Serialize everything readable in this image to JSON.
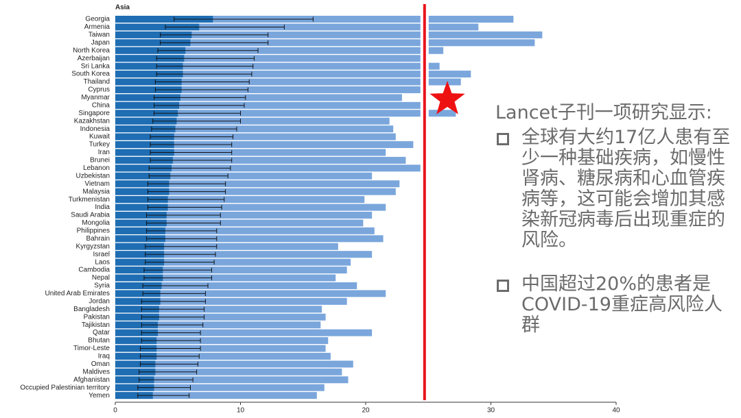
{
  "chart_data": {
    "type": "bar",
    "orientation": "horizontal",
    "title": "Asia",
    "categories": [
      "Georgia",
      "Armenia",
      "Taiwan",
      "Japan",
      "North Korea",
      "Azerbaijan",
      "Sri Lanka",
      "South Korea",
      "Thailand",
      "Cyprus",
      "Myanmar",
      "China",
      "Singapore",
      "Kazakhstan",
      "Indonesia",
      "Kuwait",
      "Turkey",
      "Iran",
      "Brunei",
      "Lebanon",
      "Uzbekistan",
      "Vietnam",
      "Malaysia",
      "Turkmenistan",
      "India",
      "Saudi Arabia",
      "Mongolia",
      "Philippines",
      "Bahrain",
      "Kyrgyzstan",
      "Israel",
      "Laos",
      "Cambodia",
      "Nepal",
      "Syria",
      "United Arab Emirates",
      "Jordan",
      "Bangladesh",
      "Pakistan",
      "Tajikistan",
      "Qatar",
      "Bhutan",
      "Timor-Leste",
      "Iraq",
      "Oman",
      "Maldives",
      "Afghanistan",
      "Occupied Palestinian territory",
      "Yemen"
    ],
    "series": [
      {
        "color": "#7aa6dc",
        "values": [
          31.8,
          29.0,
          34.1,
          33.5,
          26.2,
          24.4,
          25.9,
          28.4,
          27.6,
          24.4,
          22.9,
          24.4,
          27.2,
          21.9,
          22.2,
          22.4,
          23.8,
          21.6,
          23.2,
          24.4,
          20.5,
          22.7,
          22.4,
          19.9,
          21.6,
          20.5,
          19.8,
          20.7,
          21.4,
          17.8,
          20.5,
          18.8,
          18.5,
          17.6,
          19.3,
          21.6,
          18.5,
          16.5,
          16.8,
          16.4,
          20.5,
          17.0,
          16.8,
          17.2,
          19.0,
          18.1,
          18.6,
          16.7,
          16.1
        ]
      },
      {
        "color": "#1f6db3",
        "values": [
          7.8,
          6.7,
          6.1,
          6.0,
          5.6,
          5.5,
          5.4,
          5.4,
          5.3,
          5.3,
          5.2,
          5.1,
          5.0,
          4.9,
          4.8,
          4.7,
          4.7,
          4.7,
          4.6,
          4.5,
          4.4,
          4.3,
          4.3,
          4.2,
          4.2,
          4.1,
          4.1,
          4.0,
          4.0,
          3.9,
          3.9,
          3.9,
          3.8,
          3.8,
          3.7,
          3.6,
          3.6,
          3.5,
          3.5,
          3.4,
          3.4,
          3.3,
          3.3,
          3.3,
          3.2,
          3.2,
          3.1,
          3.1,
          3.0
        ],
        "error_low": [
          4.7,
          4.0,
          3.6,
          3.6,
          3.4,
          3.3,
          3.3,
          3.3,
          3.2,
          3.2,
          3.1,
          3.1,
          3.1,
          3.0,
          2.9,
          2.8,
          2.8,
          2.8,
          2.8,
          2.7,
          2.7,
          2.6,
          2.6,
          2.6,
          2.6,
          2.5,
          2.5,
          2.5,
          2.5,
          2.4,
          2.4,
          2.4,
          2.3,
          2.3,
          2.2,
          2.2,
          2.1,
          2.1,
          2.1,
          2.1,
          2.1,
          2.1,
          2.0,
          2.0,
          2.0,
          1.9,
          1.9,
          1.8,
          1.8
        ],
        "error_high": [
          15.8,
          13.5,
          12.2,
          12.2,
          11.4,
          11.1,
          11.0,
          10.9,
          10.7,
          10.6,
          10.4,
          10.3,
          10.0,
          10.0,
          9.7,
          9.4,
          9.3,
          9.3,
          9.3,
          9.2,
          9.0,
          8.8,
          8.8,
          8.7,
          8.5,
          8.4,
          8.4,
          8.1,
          8.1,
          8.1,
          8.0,
          7.9,
          7.7,
          7.7,
          7.4,
          7.2,
          7.2,
          7.1,
          7.1,
          7.0,
          6.8,
          6.8,
          6.8,
          6.7,
          6.6,
          6.5,
          6.2,
          6.0,
          5.9
        ]
      }
    ],
    "xlim": [
      0,
      40
    ],
    "xticks": [
      0,
      10,
      20,
      30,
      40
    ],
    "reference_line": 24.7,
    "reference_color": "#e8141b"
  },
  "text_panel": {
    "heading": "Lancet子刊一项研究显示:",
    "bullets": [
      "全球有大约17亿人患有至少一种基础疾病，如慢性肾病、糖尿病和心血管疾病等，这可能会增加其感染新冠病毒后出现重症的风险。",
      "中国超过20%的患者是COVID-19重症高风险人群"
    ]
  }
}
